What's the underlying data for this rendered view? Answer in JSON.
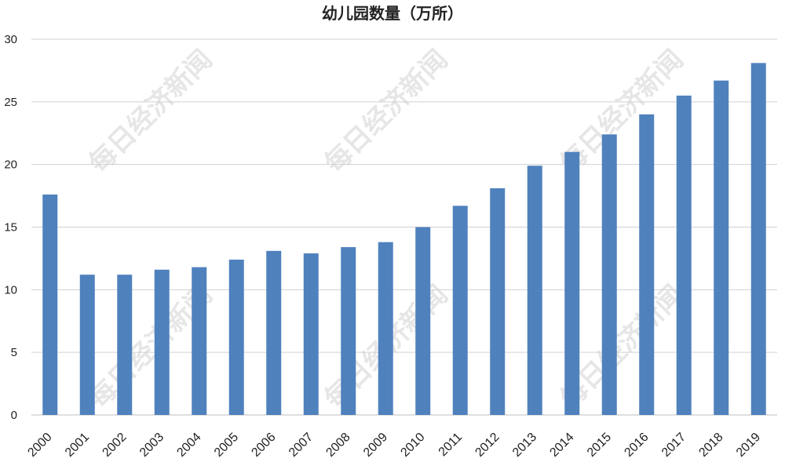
{
  "chart_data": {
    "type": "bar",
    "title": "幼儿园数量（万所）",
    "xlabel": "",
    "ylabel": "",
    "categories": [
      "2000",
      "2001",
      "2002",
      "2003",
      "2004",
      "2005",
      "2006",
      "2007",
      "2008",
      "2009",
      "2010",
      "2011",
      "2012",
      "2013",
      "2014",
      "2015",
      "2016",
      "2017",
      "2018",
      "2019"
    ],
    "values": [
      17.6,
      11.2,
      11.2,
      11.6,
      11.8,
      12.4,
      13.1,
      12.9,
      13.4,
      13.8,
      15.0,
      16.7,
      18.1,
      19.9,
      21.0,
      22.4,
      24.0,
      25.5,
      26.7,
      28.1
    ],
    "ylim": [
      0,
      30
    ],
    "yticks": [
      "0",
      "5",
      "10",
      "15",
      "20",
      "25",
      "30"
    ],
    "grid": true,
    "legend": "none",
    "bar_color": "#4f81bd",
    "grid_color": "#d0d0d0"
  },
  "watermark": "每日经济新闻"
}
